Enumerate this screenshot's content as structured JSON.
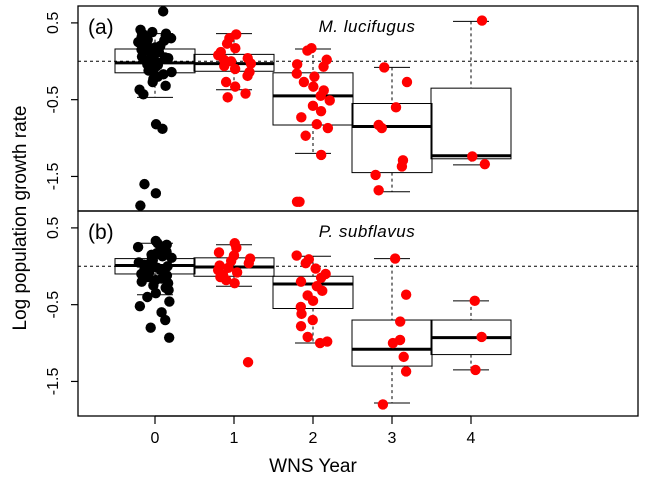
{
  "chart_data": {
    "type": "box-strip",
    "y_axis_label": "Log population growth rate",
    "x_axis_label": "WNS Year",
    "x_categories": [
      "0",
      "1",
      "2",
      "3",
      "4"
    ],
    "x_tick_labels": [
      "0",
      "1",
      "2",
      "3",
      "4"
    ],
    "y_ticks": [
      0.5,
      -0.5,
      -1.5
    ],
    "y_tick_labels": [
      "0.5",
      "-0.5",
      "-1.5"
    ],
    "reference_line_y": 0,
    "point_colors": {
      "year0": "#000000",
      "other_years": "#ff0000"
    },
    "panels": [
      {
        "tag": "(a)",
        "species": "M. lucifugus",
        "ylim": [
          -1.95,
          0.72
        ],
        "boxes": [
          {
            "x": 0,
            "q1": -0.15,
            "median": -0.02,
            "q3": 0.16,
            "whisker_low": -0.47,
            "whisker_high": 0.36
          },
          {
            "x": 1,
            "q1": -0.13,
            "median": -0.03,
            "q3": 0.09,
            "whisker_low": -0.37,
            "whisker_high": 0.36
          },
          {
            "x": 2,
            "q1": -0.83,
            "median": -0.45,
            "q3": -0.15,
            "whisker_low": -1.2,
            "whisker_high": 0.16
          },
          {
            "x": 3,
            "q1": -1.45,
            "median": -0.85,
            "q3": -0.55,
            "whisker_low": -1.7,
            "whisker_high": -0.08
          },
          {
            "x": 4,
            "q1": -1.27,
            "median": -1.23,
            "q3": -0.35,
            "whisker_low": -1.35,
            "whisker_high": 0.52
          }
        ],
        "points": [
          {
            "x": 0,
            "values": [
              0.65,
              0.41,
              0.38,
              0.36,
              0.35,
              0.34,
              0.32,
              0.3,
              0.28,
              0.27,
              0.25,
              0.23,
              0.2,
              0.18,
              0.15,
              0.13,
              0.12,
              0.1,
              0.08,
              0.06,
              0.05,
              0.04,
              0.02,
              0.0,
              -0.02,
              -0.04,
              -0.05,
              -0.07,
              -0.1,
              -0.12,
              -0.14,
              -0.17,
              -0.2,
              -0.23,
              -0.27,
              -0.32,
              -0.37,
              -0.43,
              -0.82,
              -0.88,
              -1.6,
              -1.72,
              -1.88
            ]
          },
          {
            "x": 1,
            "values": [
              0.35,
              0.3,
              0.23,
              0.17,
              0.12,
              0.08,
              0.04,
              0.02,
              0.0,
              -0.03,
              -0.06,
              -0.1,
              -0.14,
              -0.19,
              -0.27,
              -0.33,
              -0.42,
              -0.47
            ]
          },
          {
            "x": 2,
            "values": [
              0.17,
              0.14,
              0.02,
              -0.04,
              -0.07,
              -0.16,
              -0.2,
              -0.27,
              -0.33,
              -0.38,
              -0.45,
              -0.51,
              -0.58,
              -0.65,
              -0.73,
              -0.82,
              -0.87,
              -0.97,
              -1.22,
              -1.83,
              -1.83
            ]
          },
          {
            "x": 3,
            "values": [
              -0.08,
              -0.27,
              -0.6,
              -0.83,
              -0.87,
              -1.29,
              -1.37,
              -1.48,
              -1.68
            ]
          },
          {
            "x": 4,
            "values": [
              0.53,
              -1.24,
              -1.34
            ]
          }
        ]
      },
      {
        "tag": "(b)",
        "species": "P. subflavus",
        "ylim": [
          -1.95,
          0.72
        ],
        "boxes": [
          {
            "x": 0,
            "q1": -0.1,
            "median": 0.01,
            "q3": 0.1,
            "whisker_low": -0.37,
            "whisker_high": 0.3
          },
          {
            "x": 1,
            "q1": -0.13,
            "median": -0.01,
            "q3": 0.11,
            "whisker_low": -0.26,
            "whisker_high": 0.28
          },
          {
            "x": 2,
            "q1": -0.55,
            "median": -0.23,
            "q3": -0.13,
            "whisker_low": -1.0,
            "whisker_high": 0.13
          },
          {
            "x": 3,
            "q1": -1.3,
            "median": -1.08,
            "q3": -0.7,
            "whisker_low": -1.78,
            "whisker_high": 0.1
          },
          {
            "x": 4,
            "q1": -1.15,
            "median": -0.93,
            "q3": -0.7,
            "whisker_low": -1.35,
            "whisker_high": -0.45
          }
        ],
        "points": [
          {
            "x": 0,
            "values": [
              0.33,
              0.3,
              0.28,
              0.25,
              0.23,
              0.21,
              0.19,
              0.17,
              0.15,
              0.13,
              0.11,
              0.09,
              0.08,
              0.06,
              0.05,
              0.03,
              0.02,
              0.01,
              0.0,
              -0.01,
              -0.02,
              -0.03,
              -0.05,
              -0.06,
              -0.08,
              -0.1,
              -0.12,
              -0.14,
              -0.16,
              -0.18,
              -0.2,
              -0.22,
              -0.25,
              -0.28,
              -0.31,
              -0.35,
              -0.4,
              -0.46,
              -0.52,
              -0.6,
              -0.7,
              -0.8,
              -0.93
            ]
          },
          {
            "x": 1,
            "values": [
              0.3,
              0.24,
              0.18,
              0.14,
              0.1,
              0.07,
              0.04,
              0.01,
              -0.02,
              -0.05,
              -0.08,
              -0.11,
              -0.14,
              -0.18,
              -0.22,
              -1.25
            ]
          },
          {
            "x": 2,
            "values": [
              0.14,
              0.09,
              0.04,
              -0.03,
              -0.1,
              -0.15,
              -0.2,
              -0.26,
              -0.32,
              -0.38,
              -0.45,
              -0.53,
              -0.62,
              -0.7,
              -0.78,
              -0.92,
              -0.98,
              -1.0
            ]
          },
          {
            "x": 3,
            "values": [
              0.1,
              -0.37,
              -0.72,
              -0.96,
              -1.0,
              -1.18,
              -1.37,
              -1.8
            ]
          },
          {
            "x": 4,
            "values": [
              -0.45,
              -0.92,
              -1.35
            ]
          }
        ]
      }
    ]
  }
}
